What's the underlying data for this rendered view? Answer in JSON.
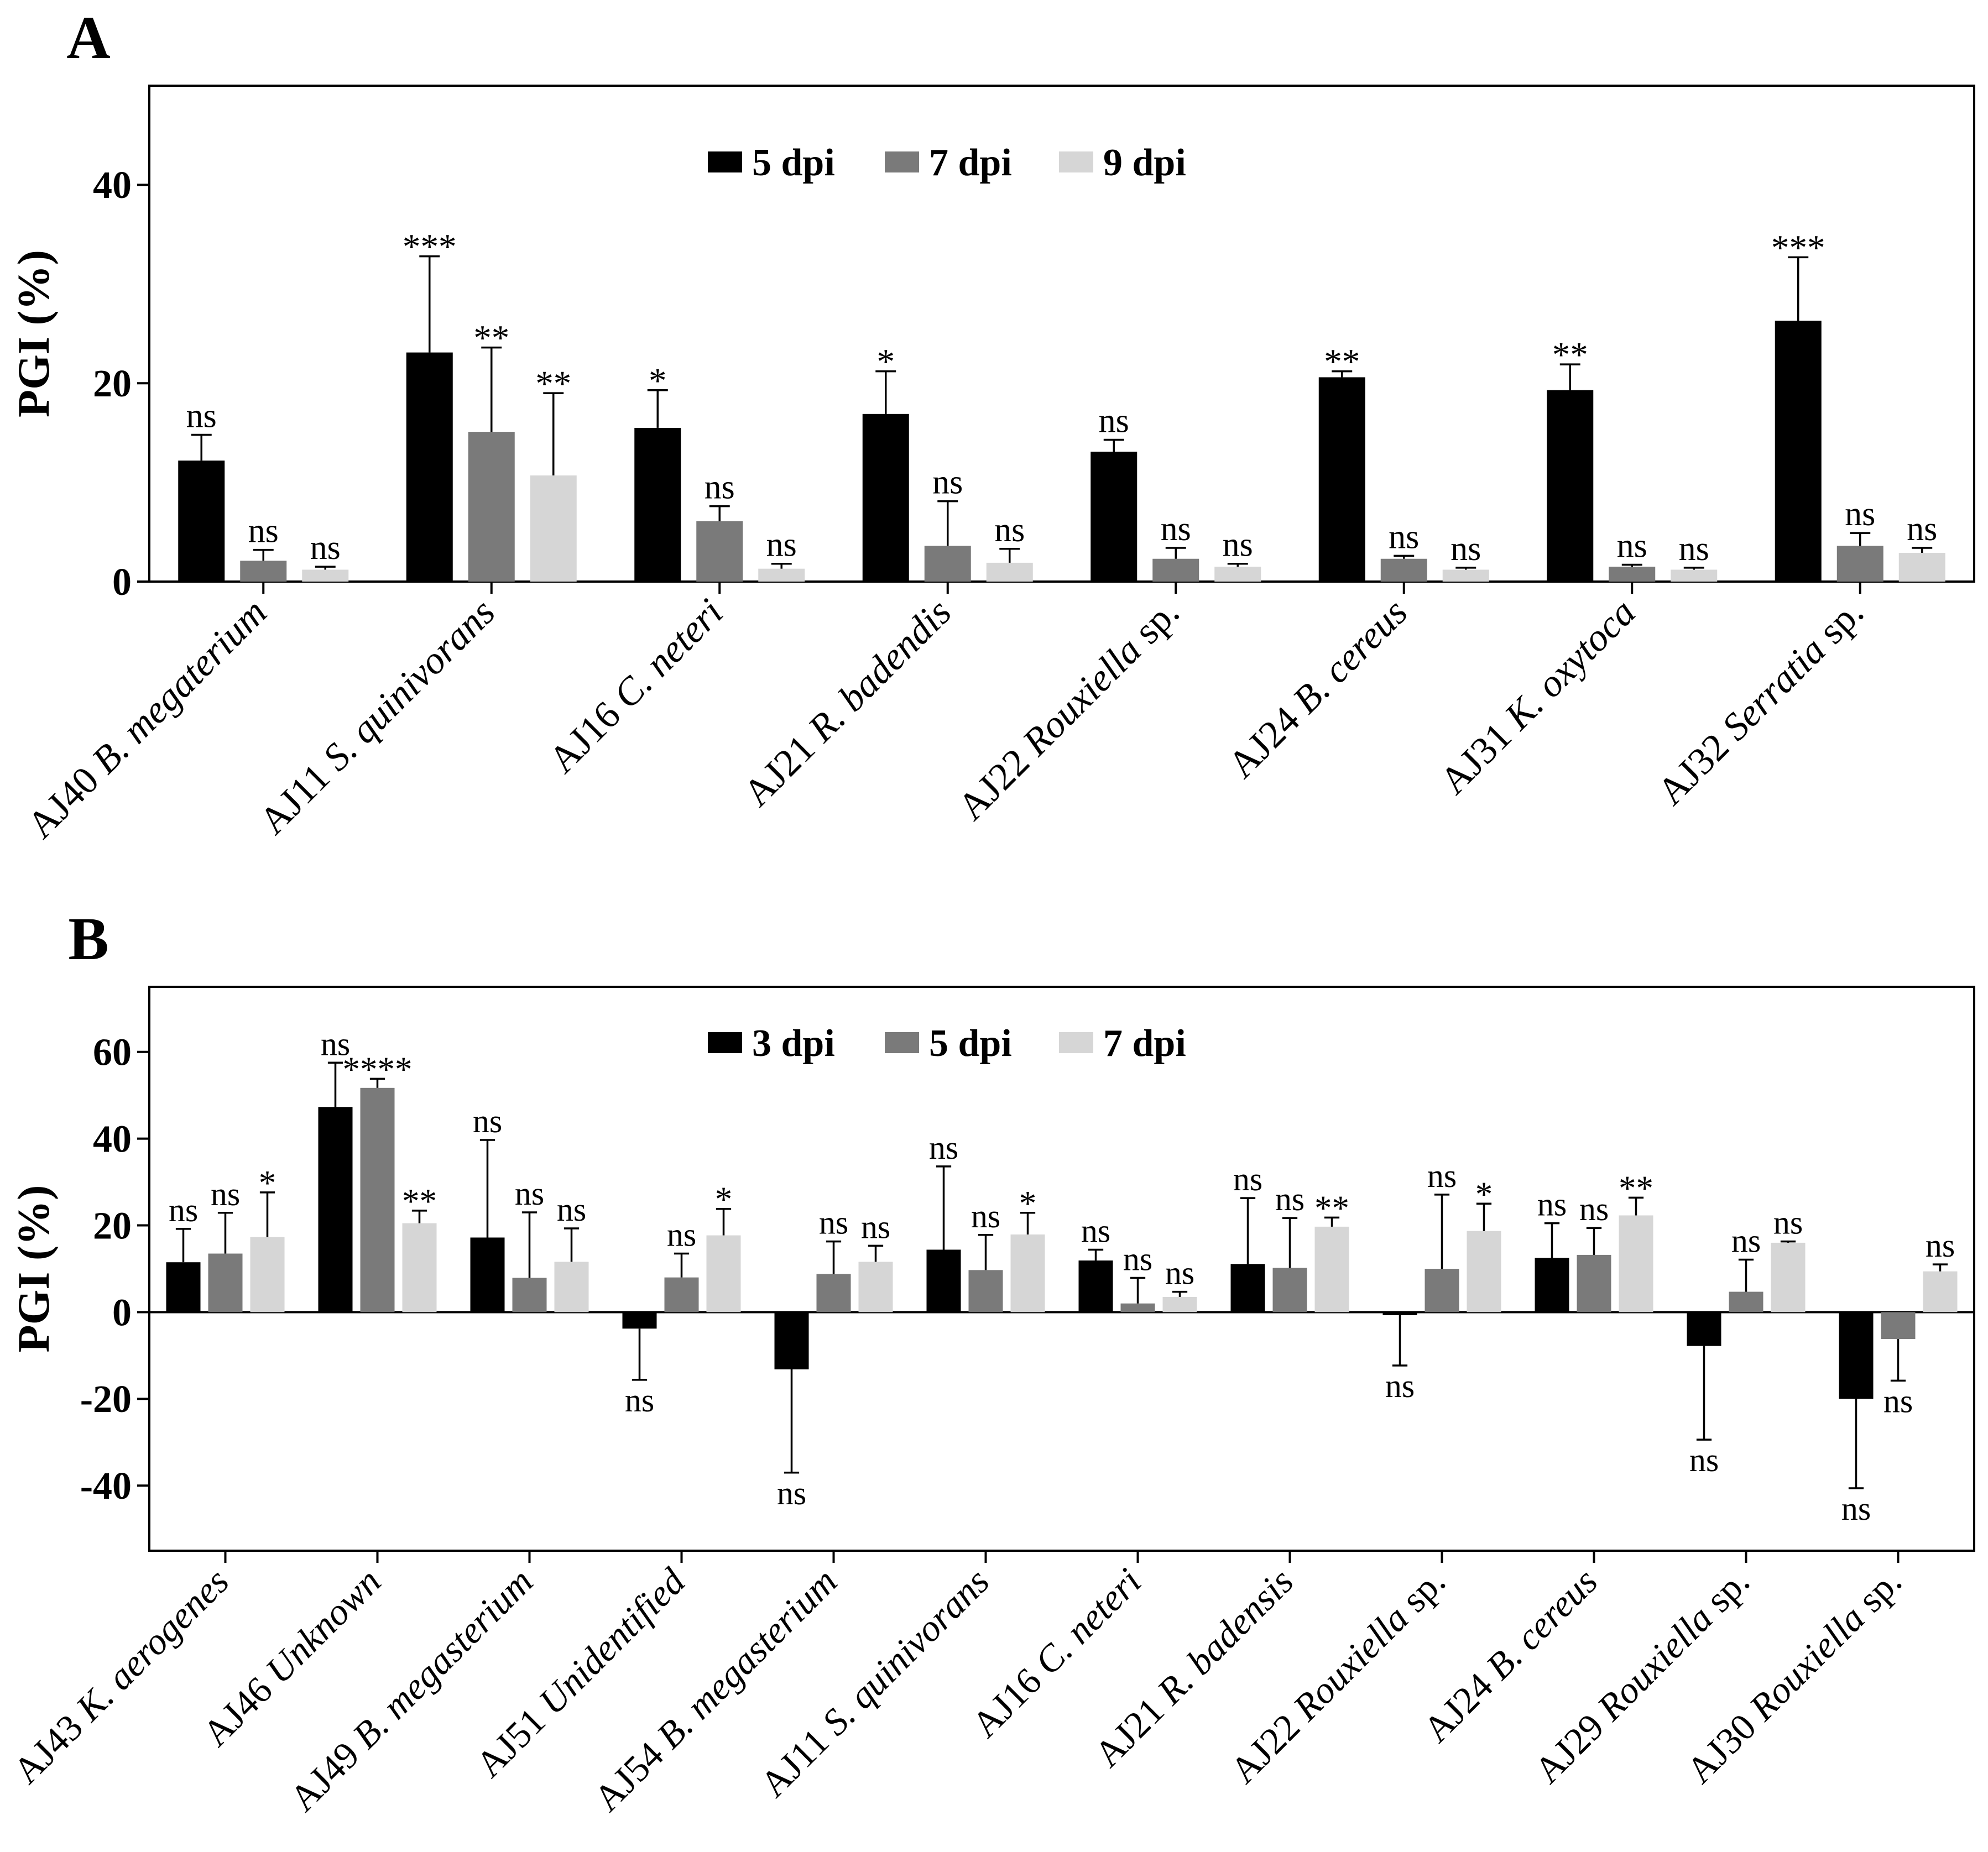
{
  "colors": {
    "series1": "#000000",
    "series2": "#7a7a7a",
    "series3": "#d6d6d6",
    "axis": "#000000",
    "background": "#ffffff"
  },
  "chart_data": [
    {
      "panel": "A",
      "type": "bar",
      "ylabel": "PGI (%)",
      "ylim": [
        0,
        50
      ],
      "yticks": [
        0,
        20,
        40
      ],
      "legend_position": "top-center",
      "categories": [
        {
          "prefix": "AJ40",
          "name": "B. megaterium",
          "suffix": ""
        },
        {
          "prefix": "AJ11",
          "name": "S. quinivorans",
          "suffix": ""
        },
        {
          "prefix": "AJ16",
          "name": "C. neteri",
          "suffix": ""
        },
        {
          "prefix": "AJ21",
          "name": "R. badendis",
          "suffix": ""
        },
        {
          "prefix": "AJ22",
          "name": "Rouxiella",
          "suffix": " sp."
        },
        {
          "prefix": "AJ24",
          "name": "B. cereus",
          "suffix": ""
        },
        {
          "prefix": "AJ31",
          "name": "K. oxytoca",
          "suffix": ""
        },
        {
          "prefix": "AJ32",
          "name": "Serratia",
          "suffix": " sp."
        }
      ],
      "series": [
        {
          "name": "5 dpi",
          "values": [
            12.2,
            23.1,
            15.5,
            16.9,
            13.1,
            20.6,
            19.3,
            26.3
          ],
          "errors": [
            2.6,
            9.7,
            3.8,
            4.3,
            1.2,
            0.6,
            2.6,
            6.4
          ],
          "sig": [
            "ns",
            "***",
            "*",
            "*",
            "ns",
            "**",
            "**",
            "***"
          ]
        },
        {
          "name": "7 dpi",
          "values": [
            2.1,
            15.1,
            6.1,
            3.6,
            2.3,
            2.3,
            1.5,
            3.6
          ],
          "errors": [
            1.1,
            8.5,
            1.5,
            4.5,
            1.1,
            0.3,
            0.2,
            1.3
          ],
          "sig": [
            "ns",
            "**",
            "ns",
            "ns",
            "ns",
            "ns",
            "ns",
            "ns"
          ]
        },
        {
          "name": "9 dpi",
          "values": [
            1.2,
            10.7,
            1.3,
            1.9,
            1.5,
            1.2,
            1.2,
            2.9
          ],
          "errors": [
            0.3,
            8.3,
            0.5,
            1.4,
            0.3,
            0.2,
            0.2,
            0.5
          ],
          "sig": [
            "ns",
            "**",
            "ns",
            "ns",
            "ns",
            "ns",
            "ns",
            "ns"
          ]
        }
      ]
    },
    {
      "panel": "B",
      "type": "bar",
      "ylabel": "PGI (%)",
      "ylim": [
        -55,
        75
      ],
      "yticks": [
        -40,
        -20,
        0,
        20,
        40,
        60
      ],
      "legend_position": "top-center",
      "categories": [
        {
          "prefix": "AJ43",
          "name": "K. aerogenes",
          "suffix": ""
        },
        {
          "prefix": "AJ46",
          "name": "Unknown",
          "suffix": ""
        },
        {
          "prefix": "AJ49",
          "name": "B. megasterium",
          "suffix": ""
        },
        {
          "prefix": "AJ51",
          "name": "Unidentified",
          "suffix": ""
        },
        {
          "prefix": "AJ54",
          "name": "B. megasterium",
          "suffix": ""
        },
        {
          "prefix": "AJ11",
          "name": "S. quinivorans",
          "suffix": ""
        },
        {
          "prefix": "AJ16",
          "name": "C. neteri",
          "suffix": ""
        },
        {
          "prefix": "AJ21",
          "name": "R. badensis",
          "suffix": ""
        },
        {
          "prefix": "AJ22",
          "name": "Rouxiella",
          "suffix": " sp."
        },
        {
          "prefix": "AJ24",
          "name": "B. cereus",
          "suffix": ""
        },
        {
          "prefix": "AJ29",
          "name": "Rouxiella",
          "suffix": " sp."
        },
        {
          "prefix": "AJ30",
          "name": "Rouxiella",
          "suffix": " sp."
        }
      ],
      "series": [
        {
          "name": "3 dpi",
          "values": [
            11.5,
            47.3,
            17.2,
            -3.8,
            -13.2,
            14.4,
            11.9,
            11.1,
            -0.7,
            12.5,
            -7.8,
            -20.0
          ],
          "errors": [
            7.7,
            10.2,
            22.5,
            11.8,
            23.8,
            19.2,
            2.5,
            15.2,
            11.6,
            8.0,
            21.6,
            20.6
          ],
          "sig": [
            "ns",
            "ns",
            "ns",
            "ns",
            "ns",
            "ns",
            "ns",
            "ns",
            "ns",
            "ns",
            "ns",
            "ns"
          ]
        },
        {
          "name": "5 dpi",
          "values": [
            13.5,
            51.7,
            7.9,
            8.0,
            8.8,
            9.7,
            2.0,
            10.2,
            10.0,
            13.2,
            4.7,
            -6.2
          ],
          "errors": [
            9.4,
            2.1,
            15.1,
            5.5,
            7.5,
            8.1,
            5.9,
            11.5,
            17.1,
            6.2,
            7.4,
            9.6
          ],
          "sig": [
            "ns",
            "****",
            "ns",
            "ns",
            "ns",
            "ns",
            "ns",
            "ns",
            "ns",
            "ns",
            "ns",
            "ns"
          ]
        },
        {
          "name": "7 dpi",
          "values": [
            17.3,
            20.5,
            11.6,
            17.7,
            11.6,
            17.9,
            3.5,
            19.7,
            18.7,
            22.3,
            16.0,
            9.4
          ],
          "errors": [
            10.3,
            2.9,
            7.7,
            6.1,
            3.7,
            5.0,
            1.2,
            2.1,
            6.3,
            4.1,
            0.3,
            1.6
          ],
          "sig": [
            "*",
            "**",
            "ns",
            "*",
            "ns",
            "*",
            "ns",
            "**",
            "*",
            "**",
            "ns",
            "ns"
          ]
        }
      ]
    }
  ]
}
